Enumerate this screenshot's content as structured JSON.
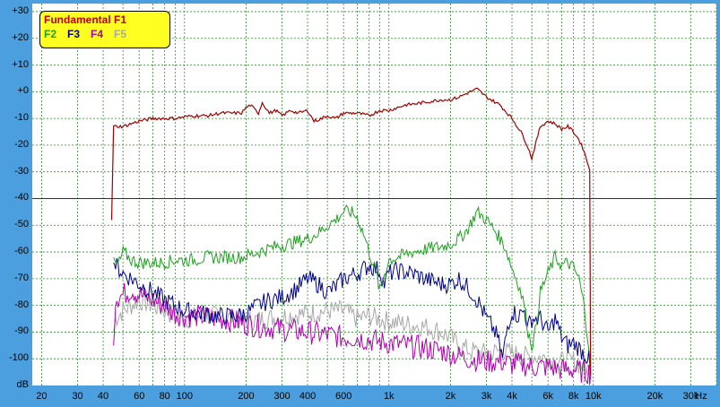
{
  "chart_data": {
    "type": "line",
    "legend": {
      "title": "Fundamental F1",
      "items": [
        "F2",
        "F3",
        "F4",
        "F5"
      ]
    },
    "colors": {
      "F1": "#a00000",
      "F2": "#1fa01f",
      "F3": "#00008b",
      "F4": "#b000b0",
      "F5": "#a8a8a8",
      "background": "#4b9fdf",
      "grid": "#2e8b2e",
      "reference": "#a00000"
    },
    "xscale": "log",
    "xlim": [
      18,
      40000
    ],
    "ylim": [
      -110,
      33
    ],
    "grid": true,
    "reference_line_db": -40,
    "y_ticks": [
      "+30",
      "+20",
      "+10",
      "+0",
      "-10",
      "-20",
      "-30",
      "-40",
      "-50",
      "-60",
      "-70",
      "-80",
      "-90",
      "-100",
      "dB"
    ],
    "x_ticks": [
      "20",
      "30",
      "40",
      "60",
      "80",
      "100",
      "200",
      "300",
      "400",
      "600",
      "1k",
      "2k",
      "3k",
      "4k",
      "6k",
      "8k",
      "10k",
      "20k",
      "30k",
      "Hz"
    ],
    "series": [
      {
        "name": "Fundamental F1",
        "x": [
          44,
          45,
          50,
          60,
          70,
          90,
          110,
          130,
          150,
          170,
          190,
          200,
          210,
          230,
          240,
          260,
          280,
          300,
          330,
          360,
          400,
          430,
          470,
          500,
          550,
          600,
          700,
          800,
          900,
          1000,
          1200,
          1500,
          1800,
          2000,
          2200,
          2500,
          2700,
          3000,
          3500,
          4000,
          4500,
          4800,
          5000,
          5200,
          5500,
          6000,
          6500,
          7000,
          7500,
          8000,
          8500,
          9000,
          9300,
          9600,
          9700
        ],
        "y": [
          -48,
          -13,
          -13,
          -11,
          -10,
          -10,
          -9,
          -9,
          -8,
          -8,
          -8,
          -6,
          -5,
          -8,
          -4,
          -8,
          -7,
          -9,
          -7,
          -8,
          -7,
          -11,
          -10,
          -9,
          -10,
          -8,
          -8,
          -9,
          -7,
          -7,
          -5,
          -4,
          -3,
          -3,
          -2,
          0,
          1,
          -2,
          -5,
          -10,
          -16,
          -21,
          -25,
          -20,
          -13,
          -11,
          -12,
          -14,
          -13,
          -15,
          -18,
          -22,
          -26,
          -29,
          -106
        ]
      },
      {
        "name": "F2",
        "x": [
          45,
          46,
          48,
          50,
          55,
          60,
          70,
          80,
          90,
          100,
          110,
          130,
          150,
          170,
          190,
          210,
          230,
          250,
          280,
          320,
          360,
          400,
          450,
          500,
          550,
          600,
          650,
          700,
          750,
          800,
          850,
          880,
          900,
          950,
          1000,
          1100,
          1300,
          1500,
          1800,
          2000,
          2200,
          2400,
          2700,
          3000,
          3300,
          3700,
          4000,
          4300,
          4600,
          4800,
          5000,
          5200,
          5500,
          6000,
          6500,
          7000,
          7500,
          8000,
          8500,
          9000,
          9500,
          9700
        ],
        "y": [
          -62,
          -65,
          -64,
          -60,
          -63,
          -64,
          -64,
          -64,
          -63,
          -63,
          -63,
          -62,
          -62,
          -62,
          -62,
          -61,
          -60,
          -59,
          -58,
          -57,
          -56,
          -55,
          -53,
          -50,
          -48,
          -45,
          -45,
          -47,
          -53,
          -60,
          -66,
          -70,
          -75,
          -68,
          -63,
          -62,
          -60,
          -59,
          -58,
          -57,
          -55,
          -52,
          -45,
          -48,
          -52,
          -58,
          -66,
          -72,
          -80,
          -90,
          -95,
          -90,
          -75,
          -68,
          -62,
          -65,
          -64,
          -66,
          -70,
          -80,
          -95,
          -106
        ]
      },
      {
        "name": "F3",
        "x": [
          45,
          46,
          50,
          55,
          60,
          70,
          80,
          90,
          100,
          120,
          150,
          180,
          200,
          230,
          260,
          300,
          350,
          400,
          450,
          500,
          550,
          600,
          700,
          800,
          900,
          950,
          1000,
          1100,
          1300,
          1500,
          1800,
          2000,
          2200,
          2400,
          2600,
          2800,
          3000,
          3200,
          3400,
          3600,
          3800,
          4000,
          4300,
          4600,
          4800,
          5000,
          5500,
          6000,
          6500,
          7000,
          7500,
          8000,
          8500,
          9000,
          9500,
          9700
        ],
        "y": [
          -64,
          -65,
          -68,
          -70,
          -72,
          -75,
          -78,
          -80,
          -82,
          -83,
          -84,
          -84,
          -83,
          -80,
          -78,
          -77,
          -74,
          -70,
          -72,
          -75,
          -73,
          -70,
          -68,
          -65,
          -67,
          -72,
          -68,
          -67,
          -68,
          -70,
          -72,
          -72,
          -70,
          -73,
          -76,
          -80,
          -85,
          -88,
          -92,
          -100,
          -88,
          -82,
          -84,
          -82,
          -88,
          -85,
          -85,
          -90,
          -85,
          -92,
          -95,
          -94,
          -96,
          -98,
          -100,
          -106
        ]
      },
      {
        "name": "F4",
        "x": [
          45,
          46,
          50,
          55,
          60,
          70,
          80,
          90,
          100,
          120,
          150,
          180,
          200,
          250,
          300,
          400,
          500,
          600,
          700,
          800,
          1000,
          1200,
          1500,
          1800,
          2000,
          2200,
          2500,
          3000,
          3500,
          4000,
          4500,
          5000,
          6000,
          7000,
          8000,
          9000,
          9500,
          9700
        ],
        "y": [
          -95,
          -77,
          -76,
          -74,
          -76,
          -78,
          -80,
          -83,
          -84,
          -84,
          -85,
          -86,
          -87,
          -88,
          -89,
          -90,
          -91,
          -92,
          -92,
          -93,
          -94,
          -95,
          -96,
          -97,
          -98,
          -99,
          -100,
          -101,
          -101,
          -102,
          -102,
          -103,
          -103,
          -104,
          -104,
          -105,
          -105,
          -106
        ]
      },
      {
        "name": "F5",
        "x": [
          45,
          46,
          50,
          55,
          60,
          70,
          80,
          90,
          100,
          120,
          150,
          200,
          250,
          300,
          400,
          500,
          600,
          700,
          800,
          1000,
          1200,
          1500,
          1800,
          2000,
          2200,
          2500,
          3000,
          3500,
          4000,
          4500,
          5000,
          6000,
          7000,
          8000,
          9000,
          9500,
          9700
        ],
        "y": [
          -90,
          -85,
          -82,
          -80,
          -78,
          -80,
          -82,
          -84,
          -85,
          -84,
          -84,
          -86,
          -85,
          -84,
          -83,
          -82,
          -82,
          -85,
          -84,
          -86,
          -87,
          -88,
          -90,
          -92,
          -95,
          -97,
          -98,
          -97,
          -98,
          -99,
          -99,
          -100,
          -101,
          -101,
          -103,
          -104,
          -106
        ]
      }
    ]
  }
}
